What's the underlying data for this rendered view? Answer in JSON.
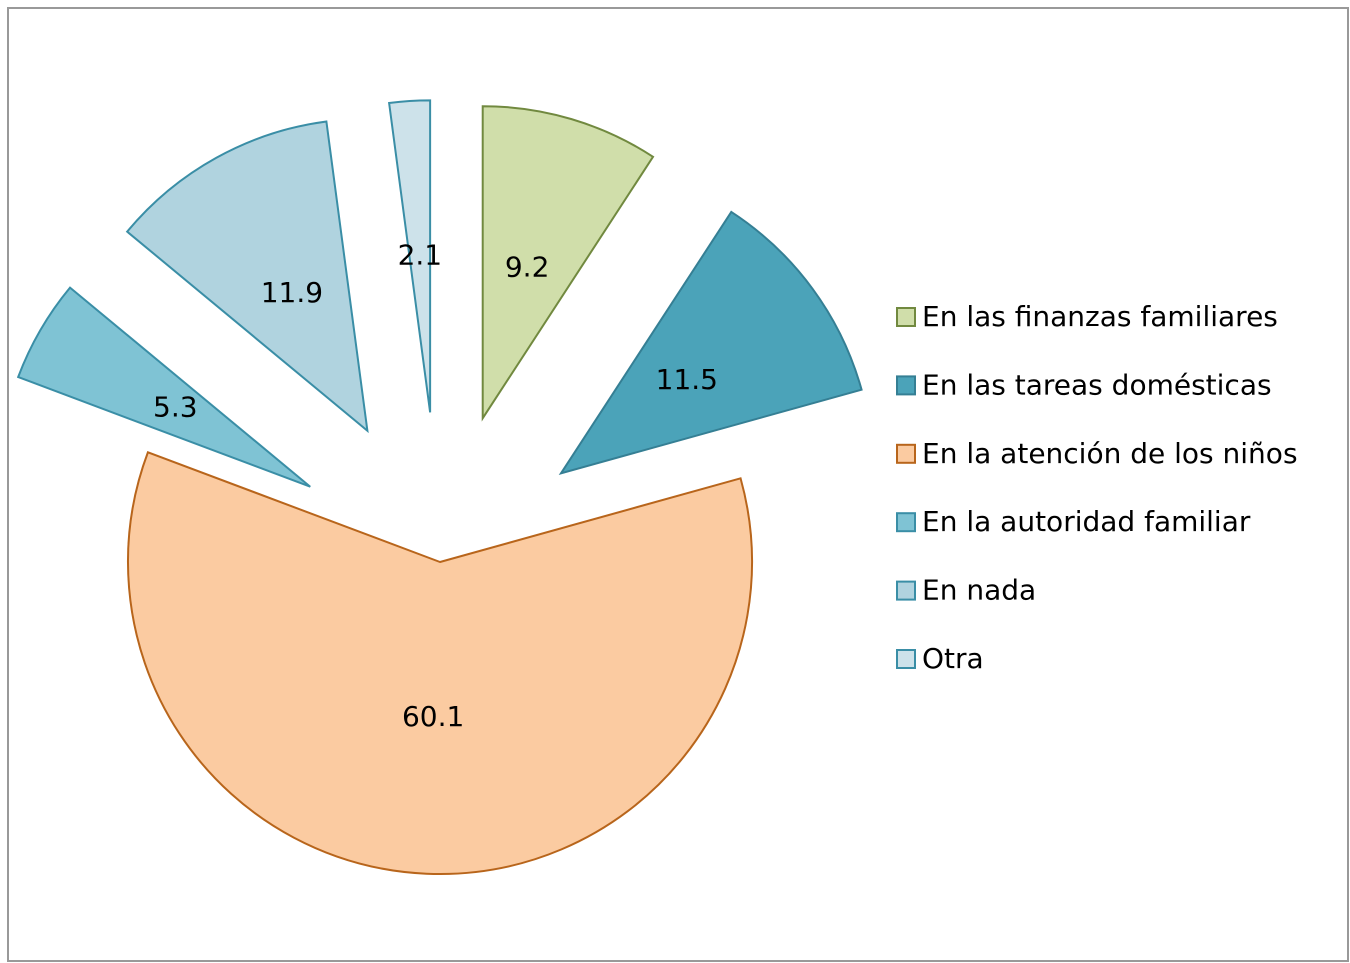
{
  "chart_data": {
    "type": "pie",
    "categories": [
      "En las finanzas familiares",
      "En las tareas domésticas",
      "En la atención de los niños",
      "En la autoridad familiar",
      "En nada",
      "Otra"
    ],
    "values": [
      9.2,
      11.5,
      60.1,
      5.3,
      11.9,
      2.1
    ],
    "colors": [
      "#d0deaa",
      "#4ba3b9",
      "#fbcba1",
      "#7fc3d4",
      "#b0d3df",
      "#cde2ea"
    ],
    "edge_colors": [
      "#71893f",
      "#357f94",
      "#b8651b",
      "#3a8ea6",
      "#3a8ea6",
      "#3a8ea6"
    ],
    "legend": "right"
  }
}
